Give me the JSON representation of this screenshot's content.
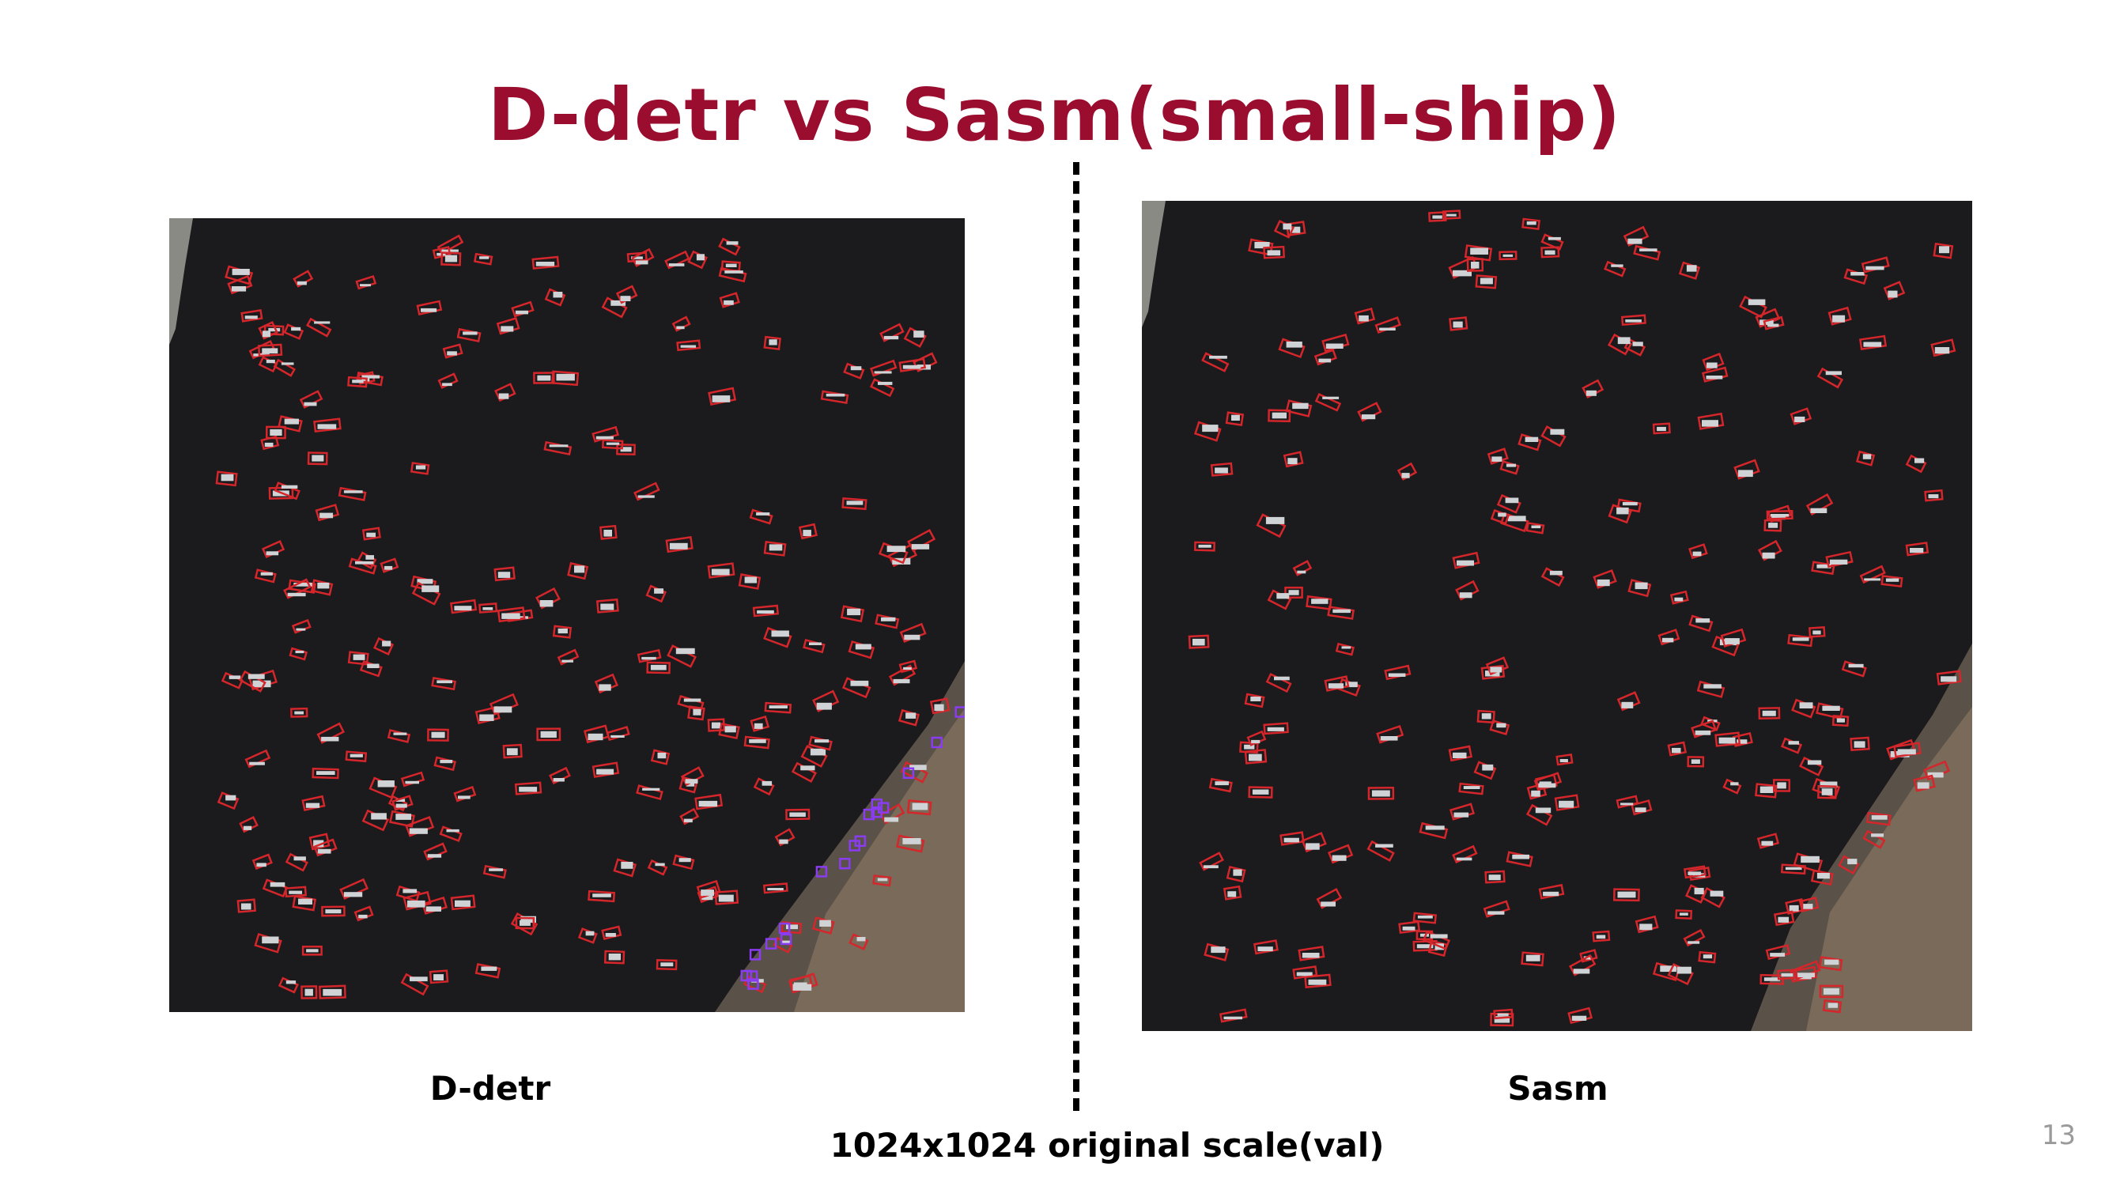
{
  "slide": {
    "title": "D-detr vs Sasm(small-ship)",
    "left_caption": "D-detr",
    "right_caption": "Sasm",
    "footer": "1024x1024 original scale(val)",
    "page_number": "13"
  },
  "colors": {
    "title": "#9b0d2e",
    "water": "#1b1a1c",
    "detection_box": "#d4262b",
    "alt_detection_box": "#8a3cf0"
  }
}
